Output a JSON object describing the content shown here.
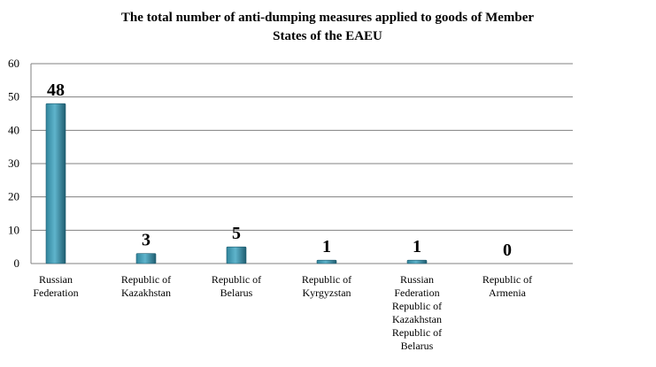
{
  "chart_data": {
    "type": "bar",
    "title_lines": [
      "The total number of anti-dumping measures applied to goods of Member",
      "States of the EAEU"
    ],
    "xlabel": "",
    "ylabel": "",
    "ylim": [
      0,
      60
    ],
    "yticks": [
      "0",
      "10",
      "20",
      "30",
      "40",
      "50",
      "60"
    ],
    "grid": true,
    "legend": "none",
    "categories": [
      [
        "Russian",
        "Federation"
      ],
      [
        "Republic of",
        "Kazakhstan"
      ],
      [
        "Republic of",
        "Belarus"
      ],
      [
        "Republic of",
        "Kyrgyzstan"
      ],
      [
        "Russian",
        "Federation",
        "Republic of",
        "Kazakhstan",
        "Republic of",
        "Belarus"
      ],
      [
        "Republic of",
        "Armenia"
      ]
    ],
    "values": [
      48,
      3,
      5,
      1,
      1,
      0
    ],
    "data_labels": [
      "48",
      "3",
      "5",
      "1",
      "1",
      "0"
    ],
    "colors": {
      "bar_light": "#5fb4cc",
      "bar_mid": "#31859c",
      "bar_dark": "#1f5d70",
      "grid": "#808080",
      "axis": "#808080"
    }
  }
}
